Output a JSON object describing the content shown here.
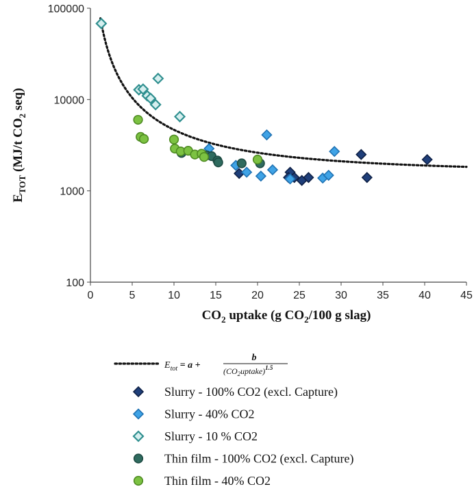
{
  "chart_data": {
    "type": "scatter",
    "title": "",
    "xlabel": "CO2 uptake (g CO2/100 g slag)",
    "xlabel_parts": {
      "a": "CO",
      "b": "2",
      "c": " uptake (g CO",
      "d": "2",
      "e": "/100 g slag)"
    },
    "ylabel": "ETOT (MJ/t CO2 seq)",
    "ylabel_parts": {
      "a": "E",
      "b": "TOT",
      "c": " (MJ/t CO",
      "d": "2",
      "e": " seq)"
    },
    "xlim": [
      0,
      45
    ],
    "ylim": [
      100,
      100000
    ],
    "yscale": "log",
    "x_ticks": [
      "0",
      "5",
      "10",
      "15",
      "20",
      "25",
      "30",
      "35",
      "40",
      "45"
    ],
    "y_ticks": [
      "100",
      "1000",
      "10000",
      "100000"
    ],
    "grid": false,
    "legend_position": "bottom",
    "fit": {
      "label": "Etot = a + b / (CO2uptake)^1.5",
      "parts": {
        "lhs": "E",
        "lhs_sub": "tot",
        "eq": " = a + ",
        "num": "b",
        "den": "(CO",
        "den_sub": "2",
        "den_end": "uptake)",
        "exp": "1.5"
      },
      "a": 1500,
      "b": 100000,
      "x_from": 1.2,
      "x_to": 45,
      "color": "#111111"
    },
    "series": [
      {
        "name": "Slurry - 100% CO2 (excl. Capture)",
        "marker": "diamond",
        "fill": "#1f3f7a",
        "stroke": "#0f2146",
        "points": [
          [
            17.8,
            1550
          ],
          [
            23.9,
            1600
          ],
          [
            23.7,
            1400
          ],
          [
            24.4,
            1400
          ],
          [
            25.3,
            1300
          ],
          [
            26.1,
            1400
          ],
          [
            32.4,
            2500
          ],
          [
            33.1,
            1400
          ],
          [
            40.3,
            2200
          ]
        ]
      },
      {
        "name": "Slurry - 40% CO2",
        "marker": "diamond",
        "fill": "#3fa3e6",
        "stroke": "#1f72b3",
        "points": [
          [
            14.2,
            2900
          ],
          [
            17.4,
            1900
          ],
          [
            18.7,
            1600
          ],
          [
            20.4,
            1450
          ],
          [
            21.1,
            4100
          ],
          [
            21.8,
            1700
          ],
          [
            23.9,
            1350
          ],
          [
            27.8,
            1380
          ],
          [
            28.5,
            1480
          ],
          [
            29.2,
            2700
          ]
        ]
      },
      {
        "name": "Slurry - 10 % CO2",
        "marker": "diamond-open",
        "fill": "#d6efef",
        "stroke": "#2f8f8f",
        "points": [
          [
            1.3,
            68000
          ],
          [
            5.8,
            12800
          ],
          [
            6.3,
            13000
          ],
          [
            6.8,
            11000
          ],
          [
            7.2,
            10300
          ],
          [
            7.8,
            8800
          ],
          [
            8.1,
            17000
          ],
          [
            10.7,
            6500
          ]
        ]
      },
      {
        "name": "Thin film - 100% CO2 (excl. Capture)",
        "marker": "circle",
        "fill": "#2f6b5f",
        "stroke": "#1d4a42",
        "points": [
          [
            10.9,
            2600
          ],
          [
            13.9,
            2450
          ],
          [
            14.5,
            2400
          ],
          [
            15.2,
            2150
          ],
          [
            15.3,
            2050
          ],
          [
            18.1,
            2000
          ],
          [
            20.3,
            2000
          ]
        ]
      },
      {
        "name": "Thin film - 40% CO2",
        "marker": "circle",
        "fill": "#7cc242",
        "stroke": "#4e8a22",
        "points": [
          [
            5.7,
            6000
          ],
          [
            6.0,
            3900
          ],
          [
            6.4,
            3700
          ],
          [
            10.0,
            3650
          ],
          [
            10.1,
            2900
          ],
          [
            10.8,
            2700
          ],
          [
            11.7,
            2750
          ],
          [
            12.5,
            2500
          ],
          [
            13.3,
            2550
          ],
          [
            13.6,
            2350
          ],
          [
            20.0,
            2200
          ]
        ]
      }
    ]
  }
}
